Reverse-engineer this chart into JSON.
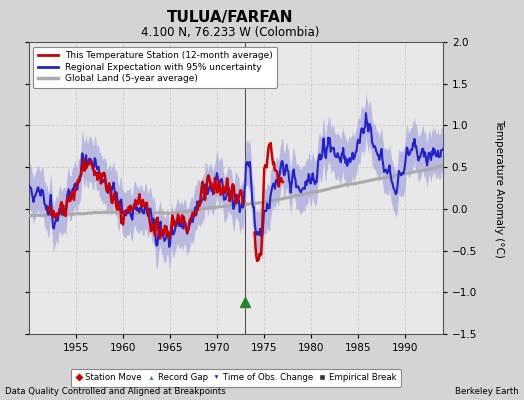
{
  "title": "TULUA/FARFAN",
  "subtitle": "4.100 N, 76.233 W (Colombia)",
  "ylabel": "Temperature Anomaly (°C)",
  "xlabel_note": "Data Quality Controlled and Aligned at Breakpoints",
  "credit": "Berkeley Earth",
  "xlim": [
    1950,
    1994
  ],
  "ylim": [
    -1.5,
    2.0
  ],
  "yticks": [
    -1.5,
    -1.0,
    -0.5,
    0.0,
    0.5,
    1.0,
    1.5,
    2.0
  ],
  "xticks": [
    1955,
    1960,
    1965,
    1970,
    1975,
    1980,
    1985,
    1990
  ],
  "fig_facecolor": "#d4d4d4",
  "ax_facecolor": "#e8e8e8",
  "regional_color": "#2222cc",
  "regional_fill_color": "#aaaadd",
  "station_color": "#cc0000",
  "global_color": "#aaaaaa",
  "vertical_line_x": 1973.0,
  "record_gap_x": 1973.0,
  "record_gap_y": -1.12
}
